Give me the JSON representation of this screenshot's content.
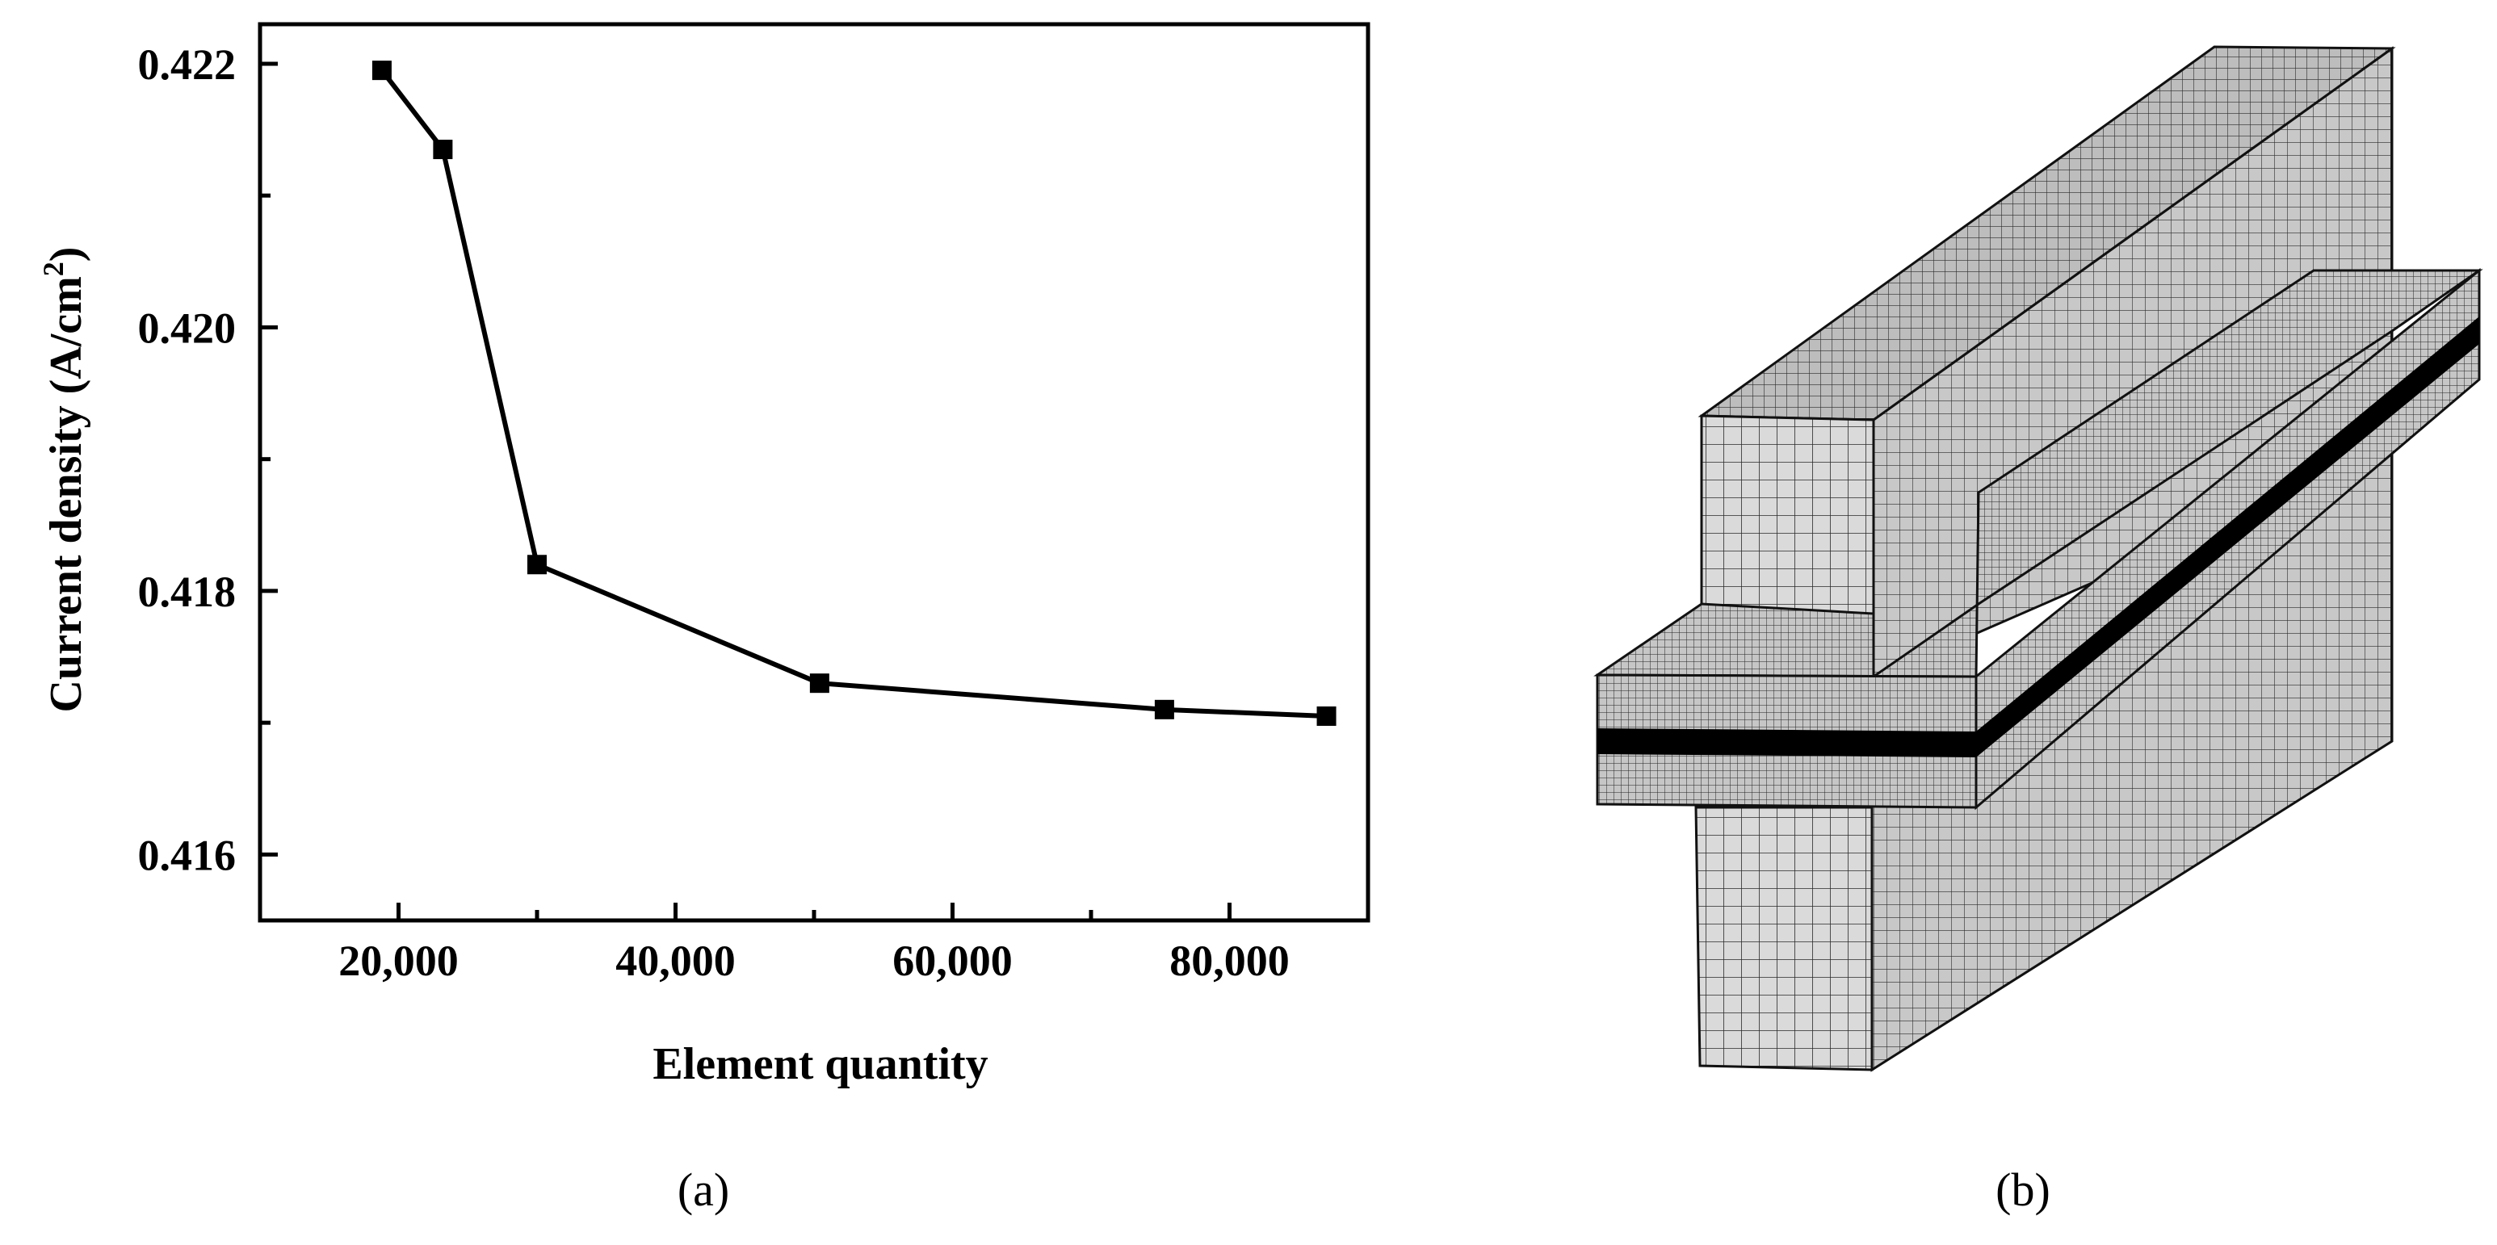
{
  "panels": {
    "a_label": "(a)",
    "b_label": "(b)"
  },
  "chart_data": {
    "type": "line",
    "title": "",
    "xlabel": "Element quantity",
    "ylabel_main": "Current density (A/cm",
    "ylabel_sup": "2",
    "ylabel_close": ")",
    "xlim": [
      10000,
      90000
    ],
    "ylim": [
      0.4155,
      0.4223
    ],
    "x_ticks": [
      {
        "value": 20000,
        "label": "20,000"
      },
      {
        "value": 40000,
        "label": "40,000"
      },
      {
        "value": 60000,
        "label": "60,000"
      },
      {
        "value": 80000,
        "label": "80,000"
      }
    ],
    "x_minor_ticks": [
      30000,
      50000,
      70000
    ],
    "y_ticks": [
      {
        "value": 0.416,
        "label": "0.416"
      },
      {
        "value": 0.418,
        "label": "0.418"
      },
      {
        "value": 0.42,
        "label": "0.420"
      },
      {
        "value": 0.422,
        "label": "0.422"
      }
    ],
    "y_minor_ticks": [
      0.417,
      0.419,
      0.421
    ],
    "marker": "square",
    "line_color": "#000000",
    "x": [
      18800,
      23200,
      30000,
      50400,
      75300,
      87000
    ],
    "y": [
      0.42195,
      0.42135,
      0.4182,
      0.4173,
      0.4171,
      0.41705
    ]
  },
  "mesh_figure": {
    "icon": "finite-element-mesh-3d",
    "face_color_front": "#d6d6d6",
    "face_color_top": "#b8b8b8",
    "face_color_side": "#c4c4c4",
    "band_color": "#000000"
  }
}
